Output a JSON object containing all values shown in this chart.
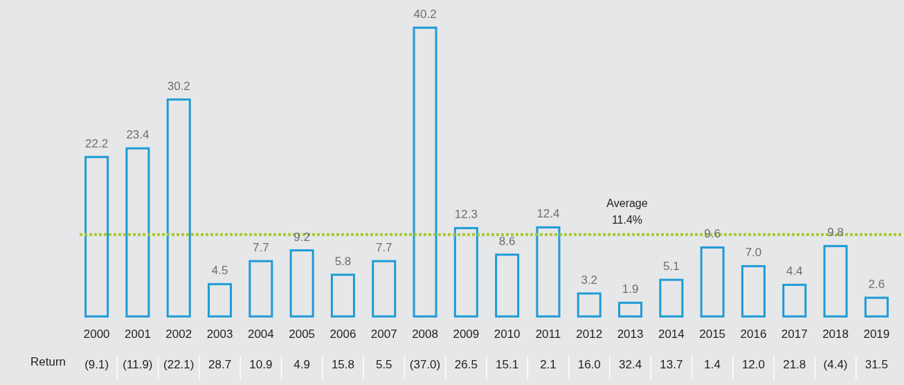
{
  "chart_data": {
    "type": "bar",
    "categories": [
      "2000",
      "2001",
      "2002",
      "2003",
      "2004",
      "2005",
      "2006",
      "2007",
      "2008",
      "2009",
      "2010",
      "2011",
      "2012",
      "2013",
      "2014",
      "2015",
      "2016",
      "2017",
      "2018",
      "2019"
    ],
    "values": [
      22.2,
      23.4,
      30.2,
      4.5,
      7.7,
      9.2,
      5.8,
      7.7,
      40.2,
      12.3,
      8.6,
      12.4,
      3.2,
      1.9,
      5.1,
      9.6,
      7.0,
      4.4,
      9.8,
      2.6
    ],
    "value_labels": [
      "22.2",
      "23.4",
      "30.2",
      "4.5",
      "7.7",
      "9.2",
      "5.8",
      "7.7",
      "40.2",
      "12.3",
      "8.6",
      "12.4",
      "3.2",
      "1.9",
      "5.1",
      "9.6",
      "7.0",
      "4.4",
      "9.8",
      "2.6"
    ],
    "color": "#1e9bd7",
    "ref_lines": [
      {
        "axis": "y",
        "value": 11.4,
        "label": "Average\n11.4%",
        "color": "#a5c82d",
        "line_style": "dotted"
      }
    ],
    "annotations": [
      "Return",
      "(9.1)",
      "(11.9)",
      "(22.1)",
      "28.7",
      "10.9",
      "4.9",
      "15.8",
      "5.5",
      "(37.0)",
      "26.5",
      "15.1",
      "2.1",
      "16.0",
      "32.4",
      "13.7",
      "1.4",
      "12.0",
      "21.8",
      "(4.4)",
      "31.5"
    ],
    "grid": false,
    "legend": false
  }
}
